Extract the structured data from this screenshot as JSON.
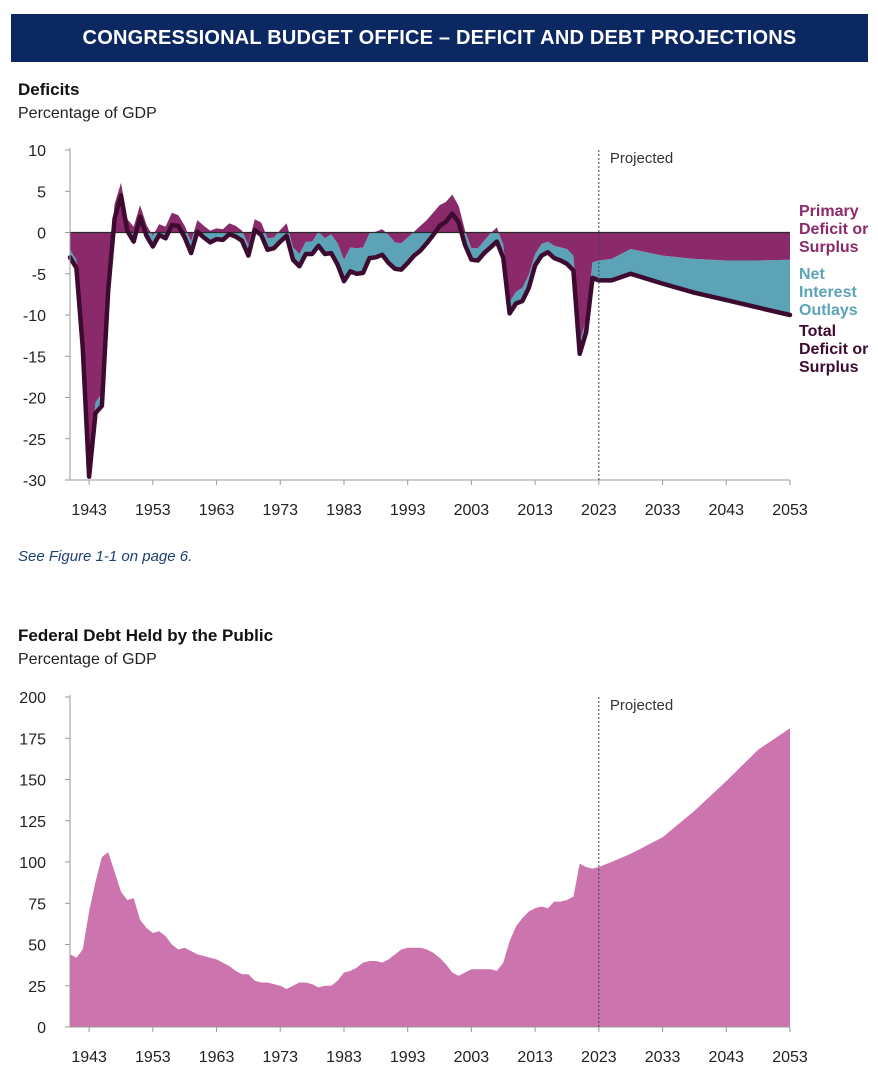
{
  "banner": "CONGRESSIONAL BUDGET OFFICE – DEFICIT AND DEBT PROJECTIONS",
  "colors": {
    "banner_bg": "#0c2863",
    "primary": "#8b2a6b",
    "net_interest": "#5ca3b8",
    "total": "#3d0a30",
    "debt": "#cc74ad"
  },
  "note": "See Figure 1-1 on page 6.",
  "chart_data": [
    {
      "type": "area",
      "title": "Deficits",
      "ylabel": "Percentage of GDP",
      "xlabel": "",
      "projected_label": "Projected",
      "projection_start": 2023,
      "xlim": [
        1940,
        2053
      ],
      "ylim": [
        -30,
        10
      ],
      "grid": false,
      "yticks": [
        10,
        5,
        0,
        -5,
        -10,
        -15,
        -20,
        -25,
        -30
      ],
      "xticks": [
        "1943",
        "1953",
        "1963",
        "1973",
        "1983",
        "1993",
        "2003",
        "2013",
        "2023",
        "2033",
        "2043",
        "2053"
      ],
      "legend": [
        {
          "key": "primary",
          "label": [
            "Primary",
            "Deficit or",
            "Surplus"
          ]
        },
        {
          "key": "net_interest",
          "label": [
            "Net",
            "Interest",
            "Outlays"
          ]
        },
        {
          "key": "total",
          "label": [
            "Total",
            "Deficit or",
            "Surplus"
          ]
        }
      ],
      "series": [
        {
          "name": "Total Deficit or Surplus",
          "x": [
            1940,
            1941,
            1942,
            1943,
            1944,
            1945,
            1946,
            1947,
            1948,
            1949,
            1950,
            1951,
            1952,
            1953,
            1954,
            1955,
            1956,
            1957,
            1958,
            1959,
            1960,
            1961,
            1962,
            1963,
            1964,
            1965,
            1966,
            1967,
            1968,
            1969,
            1970,
            1971,
            1972,
            1973,
            1974,
            1975,
            1976,
            1977,
            1978,
            1979,
            1980,
            1981,
            1982,
            1983,
            1984,
            1985,
            1986,
            1987,
            1988,
            1989,
            1990,
            1991,
            1992,
            1993,
            1994,
            1995,
            1996,
            1997,
            1998,
            1999,
            2000,
            2001,
            2002,
            2003,
            2004,
            2005,
            2006,
            2007,
            2008,
            2009,
            2010,
            2011,
            2012,
            2013,
            2014,
            2015,
            2016,
            2017,
            2018,
            2019,
            2020,
            2021,
            2022,
            2023,
            2025,
            2028,
            2033,
            2038,
            2043,
            2048,
            2053
          ],
          "values": [
            -3.0,
            -4.3,
            -13.9,
            -29.6,
            -21.9,
            -21.0,
            -7.0,
            1.7,
            4.5,
            0.2,
            -1.1,
            1.9,
            -0.4,
            -1.7,
            -0.3,
            -0.7,
            0.9,
            0.8,
            -0.6,
            -2.5,
            0.1,
            -0.6,
            -1.2,
            -0.8,
            -0.9,
            -0.2,
            -0.5,
            -1.0,
            -2.8,
            0.3,
            -0.3,
            -2.1,
            -1.9,
            -1.1,
            -0.4,
            -3.3,
            -4.1,
            -2.6,
            -2.6,
            -1.6,
            -2.6,
            -2.5,
            -3.9,
            -5.9,
            -4.7,
            -5.0,
            -4.9,
            -3.1,
            -3.0,
            -2.7,
            -3.7,
            -4.4,
            -4.5,
            -3.7,
            -2.8,
            -2.2,
            -1.3,
            -0.3,
            0.8,
            1.3,
            2.3,
            1.2,
            -1.5,
            -3.3,
            -3.4,
            -2.5,
            -1.8,
            -1.1,
            -3.1,
            -9.8,
            -8.6,
            -8.3,
            -6.7,
            -4.0,
            -2.8,
            -2.4,
            -3.1,
            -3.4,
            -3.8,
            -4.6,
            -14.7,
            -12.1,
            -5.5,
            -5.8,
            -5.8,
            -5.0,
            -6.2,
            -7.3,
            -8.2,
            -9.1,
            -10.0
          ]
        },
        {
          "name": "Primary Deficit or Surplus",
          "x": [
            1940,
            1941,
            1942,
            1943,
            1944,
            1945,
            1946,
            1947,
            1948,
            1949,
            1950,
            1951,
            1952,
            1953,
            1954,
            1955,
            1956,
            1957,
            1958,
            1959,
            1960,
            1961,
            1962,
            1963,
            1964,
            1965,
            1966,
            1967,
            1968,
            1969,
            1970,
            1971,
            1972,
            1973,
            1974,
            1975,
            1976,
            1977,
            1978,
            1979,
            1980,
            1981,
            1982,
            1983,
            1984,
            1985,
            1986,
            1987,
            1988,
            1989,
            1990,
            1991,
            1992,
            1993,
            1994,
            1995,
            1996,
            1997,
            1998,
            1999,
            2000,
            2001,
            2002,
            2003,
            2004,
            2005,
            2006,
            2007,
            2008,
            2009,
            2010,
            2011,
            2012,
            2013,
            2014,
            2015,
            2016,
            2017,
            2018,
            2019,
            2020,
            2021,
            2022,
            2023,
            2025,
            2028,
            2033,
            2038,
            2043,
            2048,
            2053
          ],
          "values": [
            -2.1,
            -3.3,
            -13.0,
            -28.8,
            -20.6,
            -19.5,
            -5.3,
            3.4,
            6.0,
            1.6,
            0.7,
            3.3,
            0.9,
            -0.4,
            1.0,
            0.7,
            2.4,
            2.1,
            0.8,
            -1.1,
            1.5,
            0.8,
            0.2,
            0.5,
            0.4,
            1.1,
            0.8,
            0.2,
            -1.5,
            1.6,
            1.2,
            -0.7,
            -0.6,
            0.3,
            1.1,
            -1.8,
            -2.6,
            -1.1,
            -1.1,
            0.1,
            -0.7,
            -0.2,
            -1.3,
            -3.3,
            -1.8,
            -1.9,
            -1.8,
            -0.1,
            0.1,
            0.4,
            -0.3,
            -1.2,
            -1.3,
            -0.6,
            0.1,
            0.8,
            1.5,
            2.4,
            3.3,
            3.7,
            4.6,
            3.2,
            0.2,
            -1.9,
            -1.9,
            -1.0,
            -0.1,
            0.6,
            -1.5,
            -8.4,
            -7.2,
            -6.7,
            -5.1,
            -2.6,
            -1.4,
            -1.1,
            -1.6,
            -1.8,
            -2.0,
            -2.8,
            -13.2,
            -10.6,
            -3.6,
            -3.4,
            -3.2,
            -2.0,
            -2.8,
            -3.2,
            -3.4,
            -3.4,
            -3.3
          ]
        }
      ]
    },
    {
      "type": "area",
      "title": "Federal Debt Held by the Public",
      "ylabel": "Percentage of GDP",
      "xlabel": "",
      "projected_label": "Projected",
      "projection_start": 2023,
      "xlim": [
        1940,
        2053
      ],
      "ylim": [
        0,
        200
      ],
      "grid": false,
      "yticks": [
        200,
        175,
        150,
        125,
        100,
        75,
        50,
        25,
        0
      ],
      "xticks": [
        "1943",
        "1953",
        "1963",
        "1973",
        "1983",
        "1993",
        "2003",
        "2013",
        "2023",
        "2033",
        "2043",
        "2053"
      ],
      "series": [
        {
          "name": "Federal Debt Held by the Public",
          "x": [
            1940,
            1941,
            1942,
            1943,
            1944,
            1945,
            1946,
            1947,
            1948,
            1949,
            1950,
            1951,
            1952,
            1953,
            1954,
            1955,
            1956,
            1957,
            1958,
            1959,
            1960,
            1961,
            1962,
            1963,
            1964,
            1965,
            1966,
            1967,
            1968,
            1969,
            1970,
            1971,
            1972,
            1973,
            1974,
            1975,
            1976,
            1977,
            1978,
            1979,
            1980,
            1981,
            1982,
            1983,
            1984,
            1985,
            1986,
            1987,
            1988,
            1989,
            1990,
            1991,
            1992,
            1993,
            1994,
            1995,
            1996,
            1997,
            1998,
            1999,
            2000,
            2001,
            2002,
            2003,
            2004,
            2005,
            2006,
            2007,
            2008,
            2009,
            2010,
            2011,
            2012,
            2013,
            2014,
            2015,
            2016,
            2017,
            2018,
            2019,
            2020,
            2021,
            2022,
            2023,
            2025,
            2028,
            2033,
            2038,
            2043,
            2048,
            2053
          ],
          "values": [
            44,
            42,
            47,
            70,
            88,
            103,
            106,
            94,
            82,
            77,
            78,
            65,
            60,
            57,
            58,
            55,
            50,
            47,
            48,
            46,
            44,
            43,
            42,
            41,
            39,
            37,
            34,
            32,
            32,
            28,
            27,
            27,
            26,
            25,
            23,
            25,
            27,
            27,
            26,
            24,
            25,
            25,
            28,
            33,
            34,
            36,
            39,
            40,
            40,
            39,
            41,
            44,
            47,
            48,
            48,
            48,
            47,
            45,
            42,
            38,
            33,
            31,
            33,
            35,
            35,
            35,
            35,
            34,
            39,
            52,
            61,
            66,
            70,
            72,
            73,
            72,
            76,
            76,
            77,
            79,
            99,
            97,
            96,
            97,
            100,
            105,
            115,
            131,
            149,
            168,
            181
          ]
        }
      ]
    }
  ]
}
